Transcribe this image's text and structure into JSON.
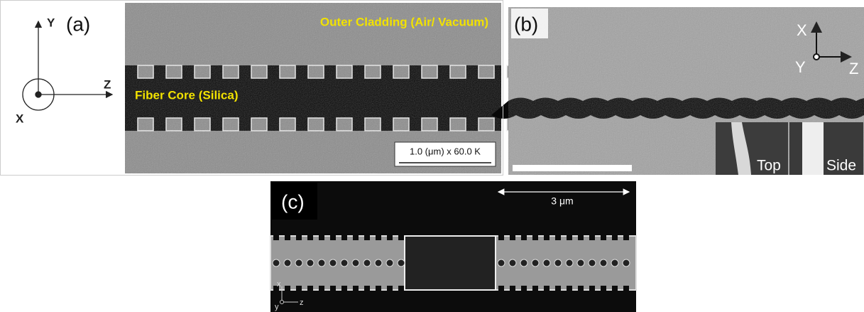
{
  "panel_a": {
    "label": "(a)",
    "axis_y": "Y",
    "axis_z": "Z",
    "axis_x": "X",
    "cladding": "Outer Cladding (Air/ Vacuum)",
    "core": "Fiber Core (Silica)",
    "scale": "1.0 (μm) x 60.0 K"
  },
  "panel_b": {
    "label": "(b)",
    "axis_x": "X",
    "axis_y": "Y",
    "axis_z": "Z",
    "inset_top": "Top",
    "inset_side": "Side"
  },
  "panel_c": {
    "label": "(c)",
    "scale": "3 μm",
    "axis_x": "x",
    "axis_y": "y",
    "axis_z": "z"
  }
}
